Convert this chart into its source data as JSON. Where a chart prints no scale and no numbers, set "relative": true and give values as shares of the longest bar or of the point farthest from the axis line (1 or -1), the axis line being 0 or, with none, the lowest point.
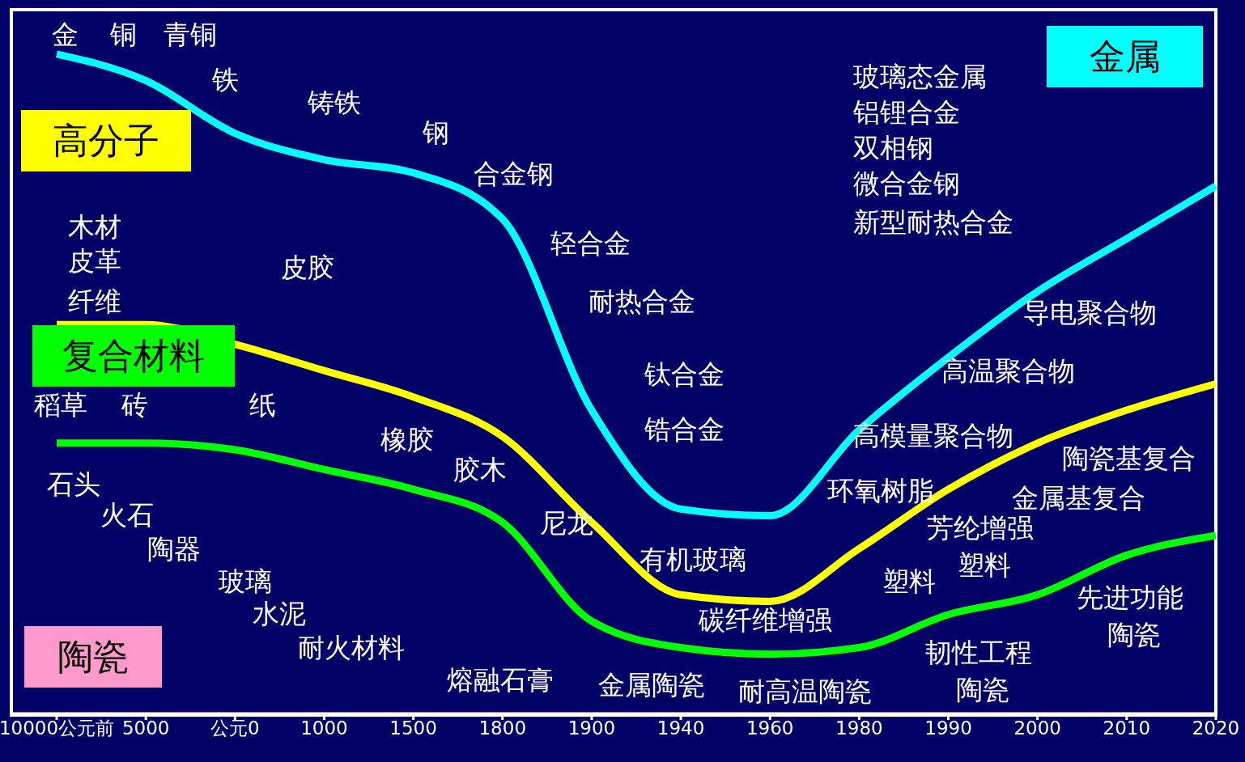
{
  "chart_data": {
    "type": "line",
    "relative": true,
    "categories": [
      "10000公元前",
      "5000",
      "公元0",
      "1000",
      "1500",
      "1800",
      "1900",
      "1940",
      "1960",
      "1980",
      "1990",
      "2000",
      "2010",
      "2020"
    ],
    "series": [
      {
        "color": "#00ffff",
        "values": [
          1,
          0.96,
          0.88,
          0.84,
          0.82,
          0.75,
          0.46,
          0.31,
          0.3,
          0.43,
          0.54,
          0.64,
          0.72,
          0.8
        ]
      },
      {
        "color": "#ffff00",
        "values": [
          0.59,
          0.59,
          0.56,
          0.52,
          0.48,
          0.42,
          0.29,
          0.18,
          0.17,
          0.25,
          0.34,
          0.41,
          0.46,
          0.5
        ]
      },
      {
        "color": "#00ff00",
        "values": [
          0.41,
          0.41,
          0.4,
          0.37,
          0.34,
          0.29,
          0.14,
          0.1,
          0.09,
          0.1,
          0.15,
          0.18,
          0.24,
          0.27
        ]
      }
    ],
    "legend": false,
    "grid": false,
    "marker": "none",
    "line_style": "solid",
    "annotations": [
      "金属",
      "高分子",
      "复合材料",
      "陶瓷",
      "金",
      "铜",
      "青铜",
      "铁",
      "铸铁",
      "钢",
      "合金钢",
      "轻合金",
      "耐热合金",
      "钛合金",
      "锆合金",
      "玻璃态金属",
      "铝锂合金",
      "双相钢",
      "微合金钢",
      "新型耐热合金",
      "导电聚合物",
      "高温聚合物",
      "高模量聚合物",
      "环氧树脂",
      "有机玻璃",
      "木材",
      "皮革",
      "纤维",
      "皮胶",
      "稻草",
      "砖",
      "纸",
      "橡胶",
      "胶木",
      "尼龙",
      "陶瓷基复合",
      "金属基复合",
      "芳纶增强",
      "塑料",
      "碳纤维增强",
      "塑料",
      "石头",
      "火石",
      "陶器",
      "玻璃",
      "水泥",
      "耐火材料",
      "熔融石膏",
      "金属陶瓷",
      "耐高温陶瓷",
      "韧性工程",
      "陶瓷",
      "先进功能",
      "陶瓷"
    ]
  }
}
